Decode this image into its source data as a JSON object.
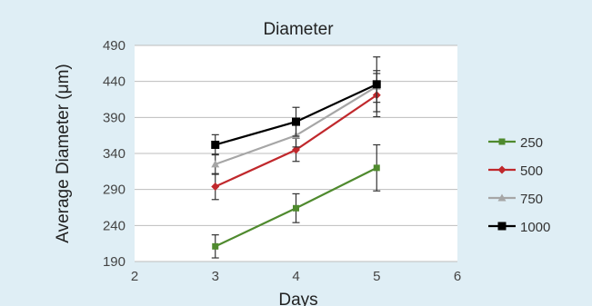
{
  "chart_data": {
    "type": "line",
    "title": "Diameter",
    "xlabel": "Days",
    "ylabel": "Average Diameter (μm)",
    "xlim": [
      2,
      6
    ],
    "ylim": [
      190,
      490
    ],
    "xticks": [
      2,
      3,
      4,
      5,
      6
    ],
    "yticks": [
      190,
      240,
      290,
      340,
      390,
      440,
      490
    ],
    "grid": "horizontal",
    "legend_position": "right",
    "x": [
      3,
      4,
      5
    ],
    "series": [
      {
        "name": "250",
        "color": "#4f8a2e",
        "marker": "square",
        "values": [
          211,
          264,
          320
        ],
        "errors": [
          16,
          20,
          32
        ]
      },
      {
        "name": "500",
        "color": "#c0282c",
        "marker": "diamond",
        "values": [
          294,
          345,
          421
        ],
        "errors": [
          18,
          16,
          30
        ]
      },
      {
        "name": "750",
        "color": "#a6a6a6",
        "marker": "triangle",
        "values": [
          325,
          365,
          433
        ],
        "errors": [
          14,
          16,
          22
        ]
      },
      {
        "name": "1000",
        "color": "#000000",
        "marker": "square",
        "values": [
          352,
          384,
          436
        ],
        "errors": [
          14,
          20,
          38
        ]
      }
    ]
  }
}
